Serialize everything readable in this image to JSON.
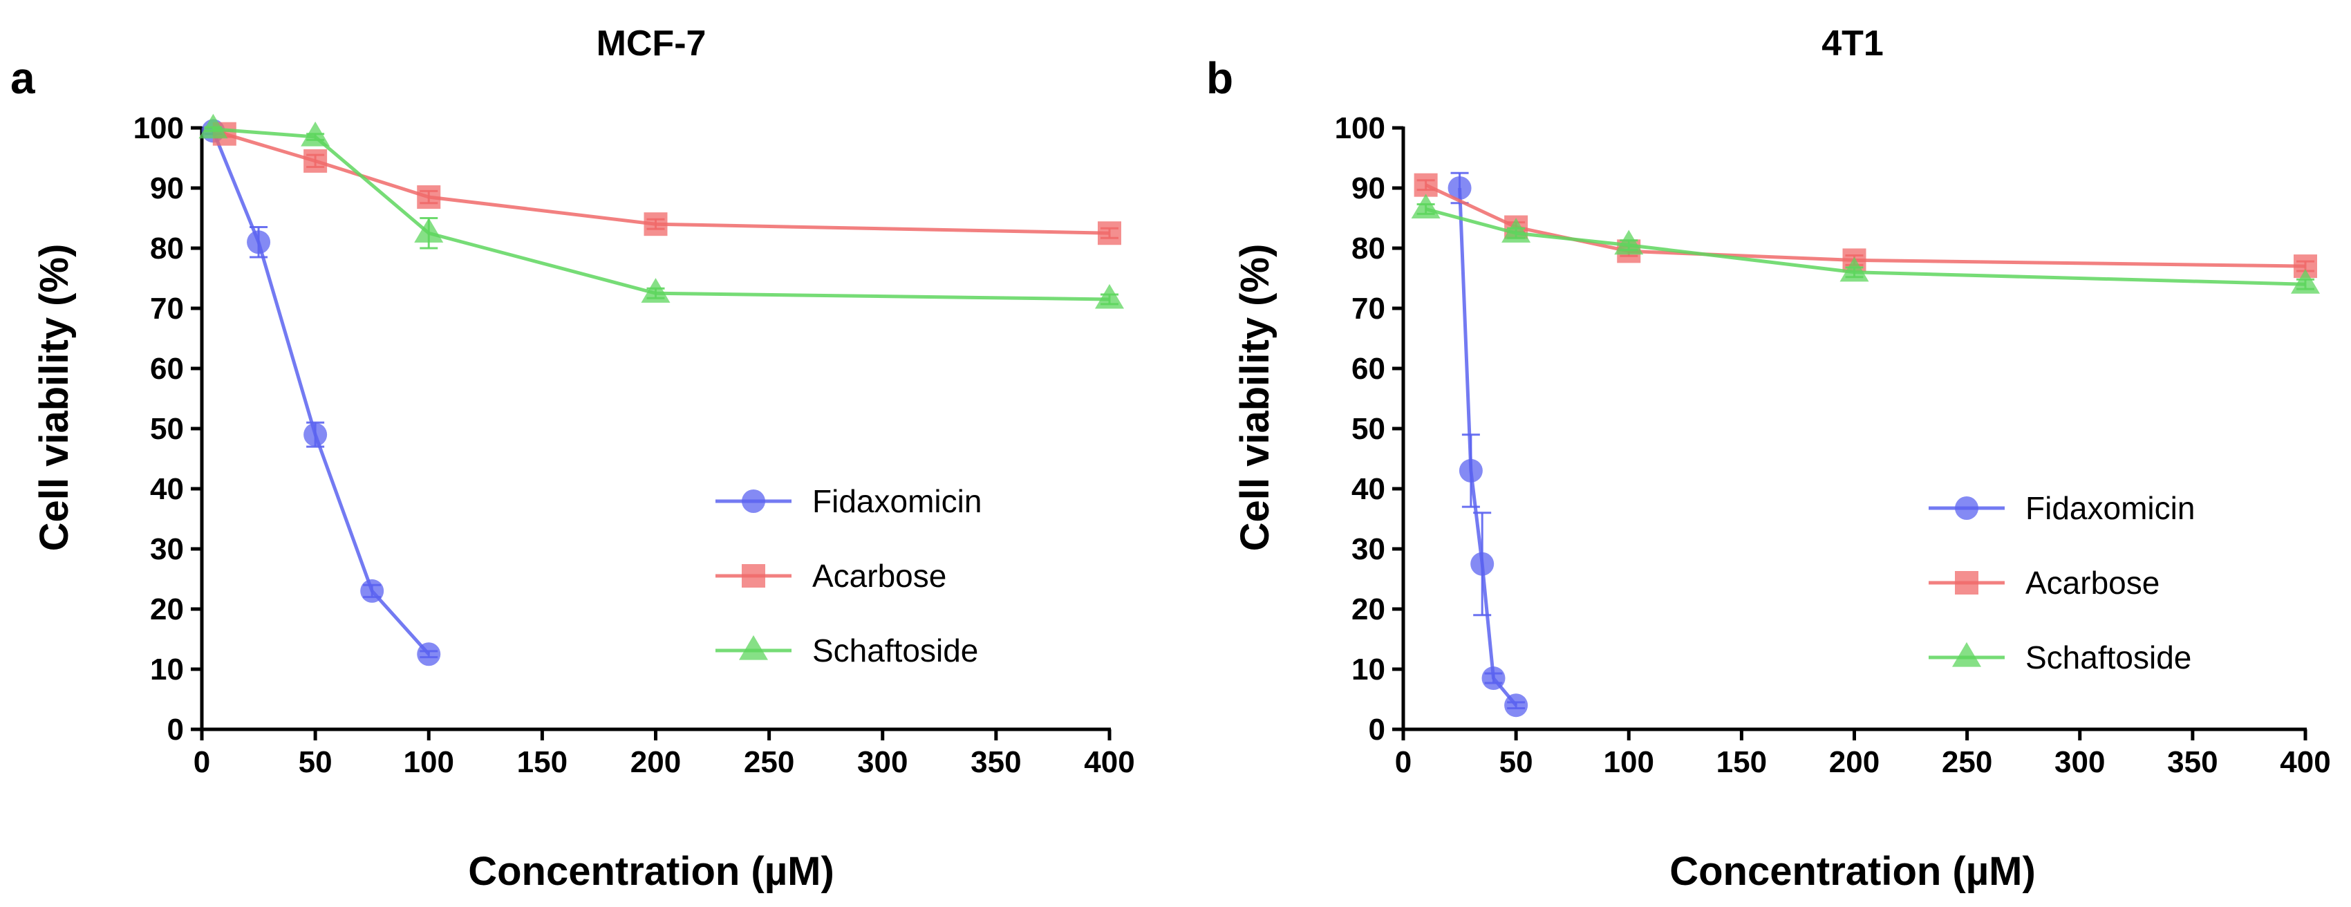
{
  "chart_data": [
    {
      "type": "line",
      "panel": "a",
      "title": "MCF-7",
      "xlabel": "Concentration (µM)",
      "ylabel": "Cell viability (%)",
      "xlim": [
        0,
        400
      ],
      "ylim": [
        0,
        100
      ],
      "x_ticks": [
        "0",
        "50",
        "100",
        "150",
        "200",
        "250",
        "300",
        "350",
        "400"
      ],
      "y_ticks": [
        "0",
        "10",
        "20",
        "30",
        "40",
        "50",
        "60",
        "70",
        "80",
        "90",
        "100"
      ],
      "grid": false,
      "legend_position": "lower-right",
      "series": [
        {
          "name": "Fidaxomicin",
          "marker": "circle",
          "color": "#5b63f0",
          "x": [
            5,
            25,
            50,
            75,
            100
          ],
          "y": [
            99.5,
            81,
            49,
            23,
            12.5
          ],
          "err": [
            0.5,
            2.5,
            2,
            1,
            0.5
          ]
        },
        {
          "name": "Acarbose",
          "marker": "square",
          "color": "#f06a6a",
          "x": [
            10,
            50,
            100,
            200,
            400
          ],
          "y": [
            99,
            94.5,
            88.5,
            84,
            82.5
          ],
          "err": [
            0.5,
            1,
            1,
            0.8,
            0.8
          ]
        },
        {
          "name": "Schaftoside",
          "marker": "triangle",
          "color": "#5ed65e",
          "x": [
            5,
            50,
            100,
            200,
            400
          ],
          "y": [
            99.8,
            98.5,
            82.5,
            72.5,
            71.5
          ],
          "err": [
            0.3,
            0.5,
            2.5,
            0.8,
            0.8
          ]
        }
      ]
    },
    {
      "type": "line",
      "panel": "b",
      "title": "4T1",
      "xlabel": "Concentration (µM)",
      "ylabel": "Cell viability (%)",
      "xlim": [
        0,
        400
      ],
      "ylim": [
        0,
        100
      ],
      "x_ticks": [
        "0",
        "50",
        "100",
        "150",
        "200",
        "250",
        "300",
        "350",
        "400"
      ],
      "y_ticks": [
        "0",
        "10",
        "20",
        "30",
        "40",
        "50",
        "60",
        "70",
        "80",
        "90",
        "100"
      ],
      "grid": false,
      "legend_position": "lower-right",
      "series": [
        {
          "name": "Fidaxomicin",
          "marker": "circle",
          "color": "#5b63f0",
          "x": [
            25,
            30,
            35,
            40,
            50
          ],
          "y": [
            90,
            43,
            27.5,
            8.5,
            4
          ],
          "err": [
            2.5,
            6,
            8.5,
            0.8,
            0.5
          ]
        },
        {
          "name": "Acarbose",
          "marker": "square",
          "color": "#f06a6a",
          "x": [
            10,
            50,
            100,
            200,
            400
          ],
          "y": [
            90.5,
            83.5,
            79.5,
            78,
            77
          ],
          "err": [
            0.8,
            0.8,
            0.8,
            0.8,
            0.8
          ]
        },
        {
          "name": "Schaftoside",
          "marker": "triangle",
          "color": "#5ed65e",
          "x": [
            10,
            50,
            100,
            200,
            400
          ],
          "y": [
            86.5,
            82.5,
            80.5,
            76,
            74
          ],
          "err": [
            0.8,
            0.8,
            0.8,
            0.8,
            0.8
          ]
        }
      ]
    }
  ]
}
